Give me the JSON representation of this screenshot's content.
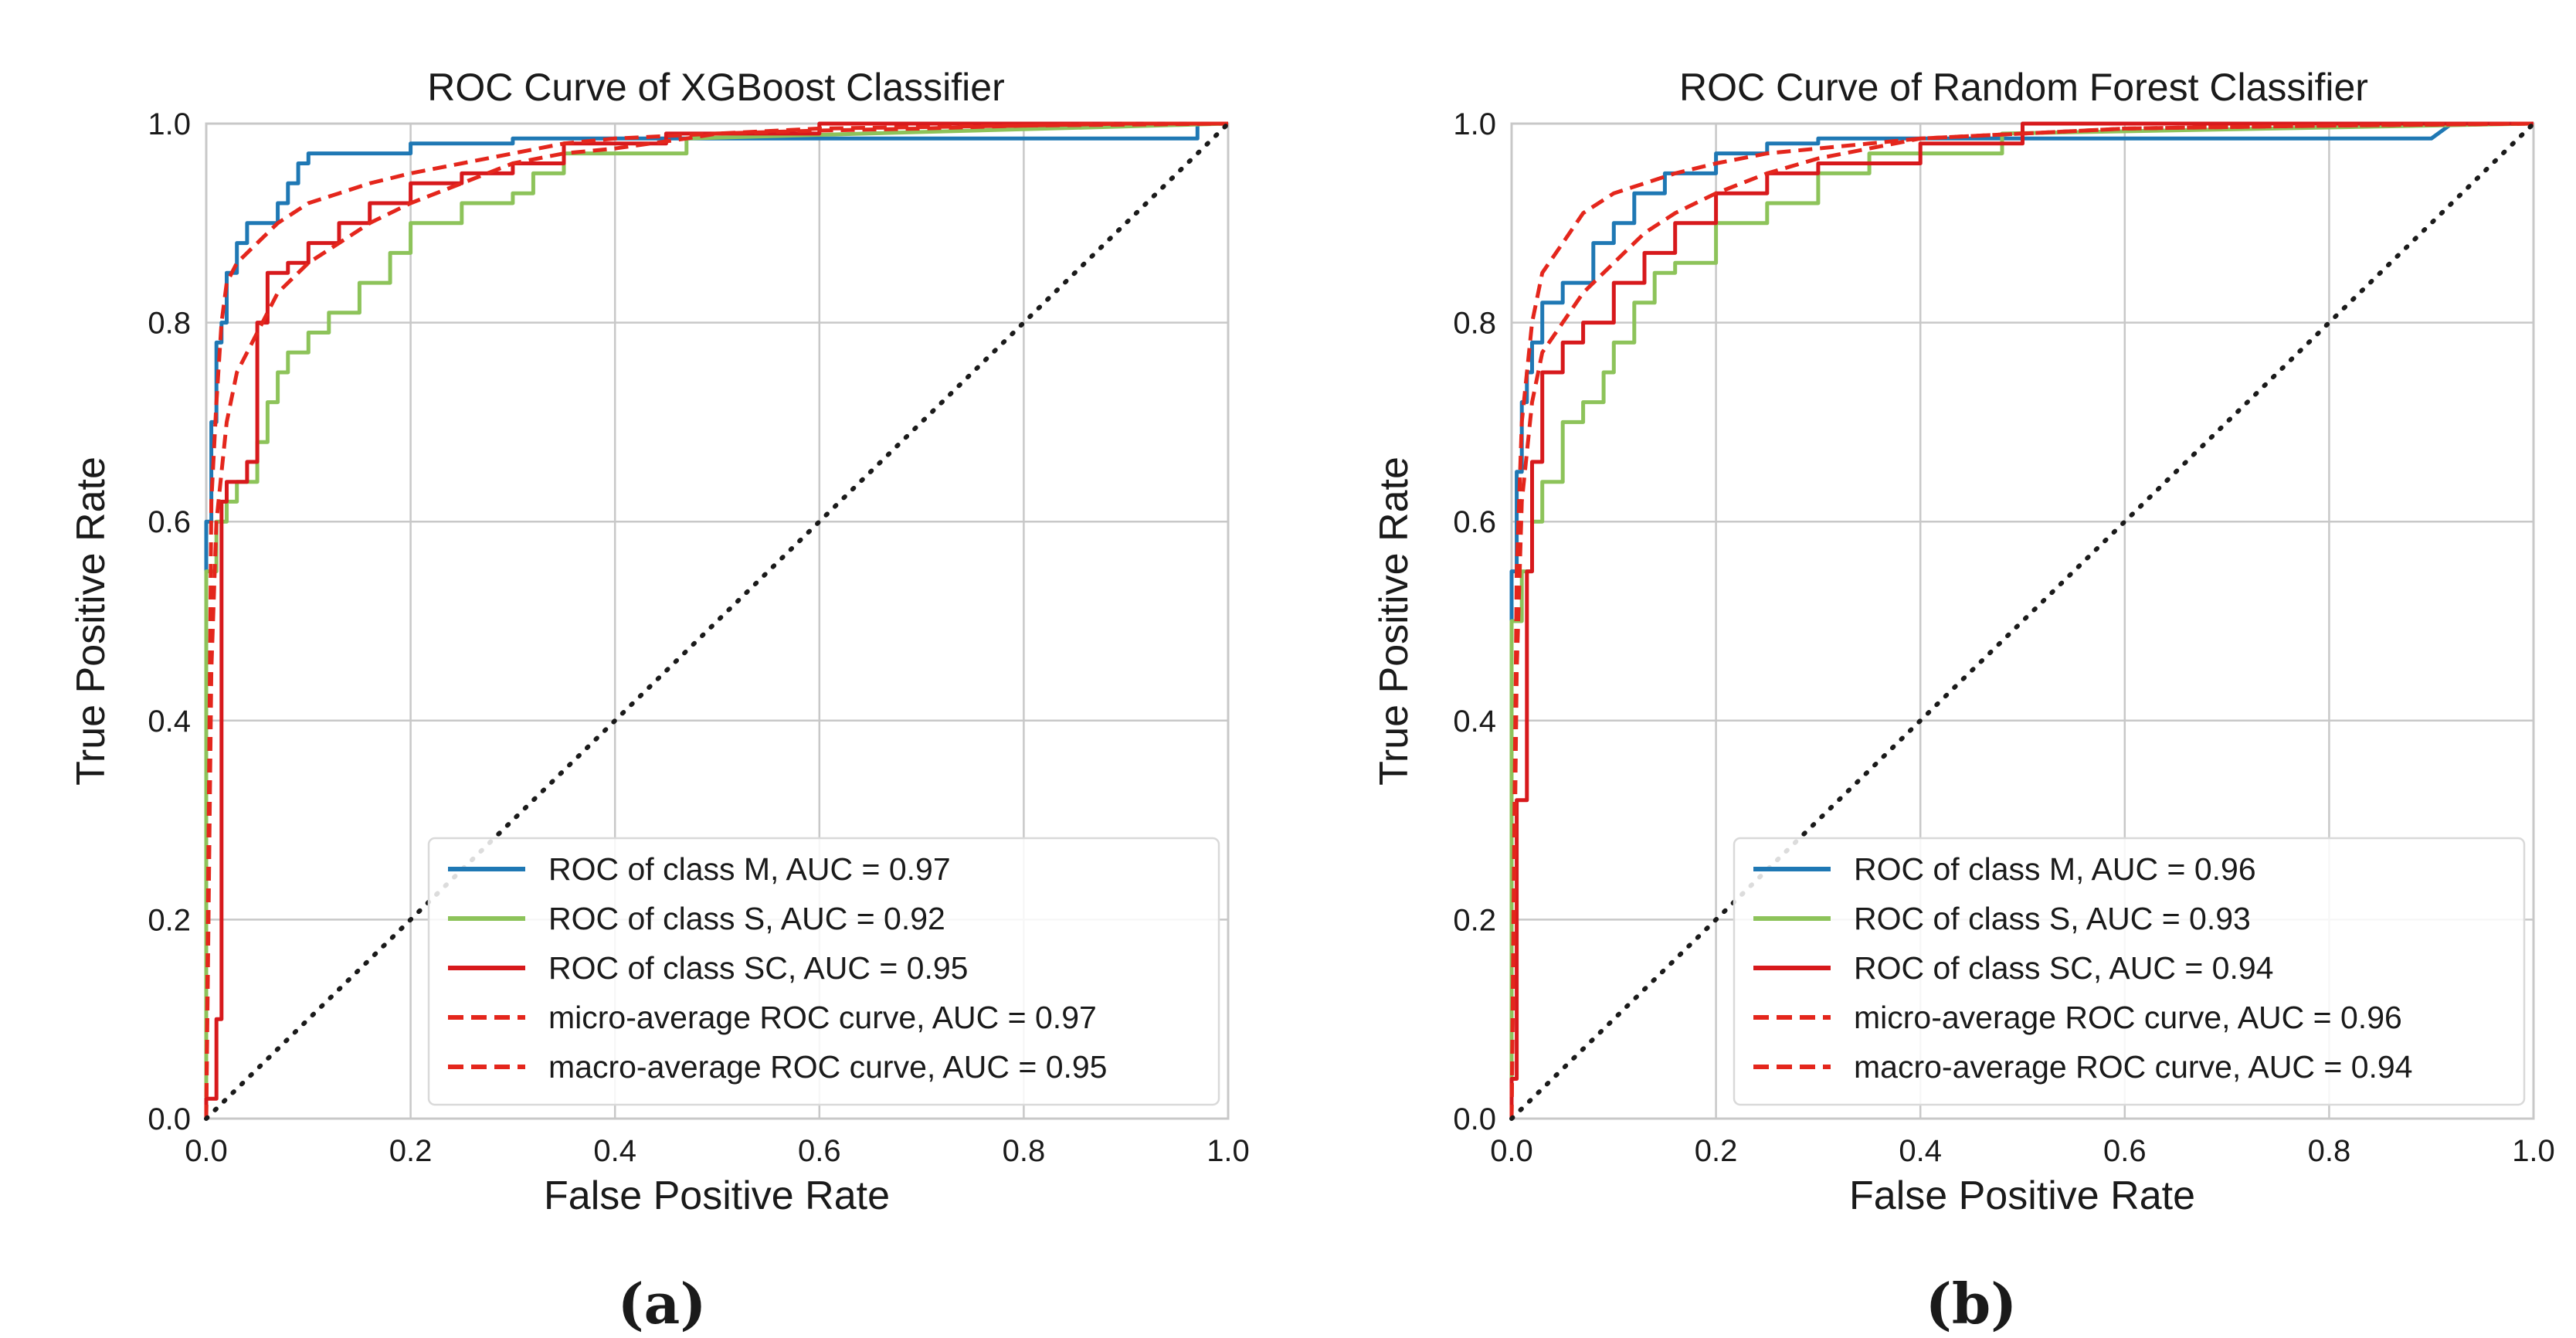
{
  "colors": {
    "class_m": "#1f78b4",
    "class_s": "#8dc35a",
    "class_sc": "#d7191c",
    "average": "#e4261c",
    "diagonal": "#1a1a1a",
    "grid": "#c8c8c8",
    "frame": "#c8c8c8"
  },
  "chart_data": [
    {
      "type": "line",
      "caption": "(a)",
      "title": "ROC Curve of XGBoost Classifier",
      "xlabel": "False Positive Rate",
      "ylabel": "True Positive Rate",
      "xlim": [
        0,
        1
      ],
      "ylim": [
        0,
        1
      ],
      "xticks": [
        "0.0",
        "0.2",
        "0.4",
        "0.6",
        "0.8",
        "1.0"
      ],
      "yticks": [
        "0.0",
        "0.2",
        "0.4",
        "0.6",
        "0.8",
        "1.0"
      ],
      "grid": true,
      "legend_position": "lower-right",
      "series": [
        {
          "name": "ROC of class M, AUC = 0.97",
          "color": "#1f78b4",
          "dash": "solid",
          "x": [
            0,
            0,
            0.005,
            0.005,
            0.01,
            0.01,
            0.015,
            0.015,
            0.02,
            0.02,
            0.03,
            0.03,
            0.04,
            0.04,
            0.07,
            0.07,
            0.08,
            0.08,
            0.09,
            0.09,
            0.1,
            0.1,
            0.2,
            0.2,
            0.3,
            0.3,
            0.97,
            0.97,
            0.98,
            1.0
          ],
          "y": [
            0,
            0.6,
            0.6,
            0.7,
            0.7,
            0.78,
            0.78,
            0.8,
            0.8,
            0.85,
            0.85,
            0.88,
            0.88,
            0.9,
            0.9,
            0.92,
            0.92,
            0.94,
            0.94,
            0.96,
            0.96,
            0.97,
            0.97,
            0.98,
            0.98,
            0.985,
            0.985,
            1.0,
            1.0,
            1.0
          ]
        },
        {
          "name": "ROC of class S, AUC = 0.92",
          "color": "#8dc35a",
          "dash": "solid",
          "x": [
            0,
            0,
            0.01,
            0.01,
            0.02,
            0.02,
            0.03,
            0.03,
            0.05,
            0.05,
            0.06,
            0.06,
            0.07,
            0.07,
            0.08,
            0.08,
            0.1,
            0.1,
            0.12,
            0.12,
            0.15,
            0.15,
            0.18,
            0.18,
            0.2,
            0.2,
            0.25,
            0.25,
            0.3,
            0.3,
            0.32,
            0.32,
            0.35,
            0.35,
            0.47,
            0.47,
            1.0
          ],
          "y": [
            0,
            0.55,
            0.55,
            0.6,
            0.6,
            0.62,
            0.62,
            0.64,
            0.64,
            0.68,
            0.68,
            0.72,
            0.72,
            0.75,
            0.75,
            0.77,
            0.77,
            0.79,
            0.79,
            0.81,
            0.81,
            0.84,
            0.84,
            0.87,
            0.87,
            0.9,
            0.9,
            0.92,
            0.92,
            0.93,
            0.93,
            0.95,
            0.95,
            0.97,
            0.97,
            0.985,
            1.0
          ]
        },
        {
          "name": "ROC of class SC, AUC = 0.95",
          "color": "#d7191c",
          "dash": "solid",
          "x": [
            0,
            0,
            0.01,
            0.01,
            0.015,
            0.015,
            0.02,
            0.02,
            0.04,
            0.04,
            0.05,
            0.05,
            0.06,
            0.06,
            0.08,
            0.08,
            0.1,
            0.1,
            0.13,
            0.13,
            0.16,
            0.16,
            0.2,
            0.2,
            0.25,
            0.25,
            0.3,
            0.3,
            0.35,
            0.35,
            0.45,
            0.45,
            0.6,
            0.6,
            1.0
          ],
          "y": [
            0,
            0.02,
            0.02,
            0.1,
            0.1,
            0.62,
            0.62,
            0.64,
            0.64,
            0.66,
            0.66,
            0.8,
            0.8,
            0.85,
            0.85,
            0.86,
            0.86,
            0.88,
            0.88,
            0.9,
            0.9,
            0.92,
            0.92,
            0.94,
            0.94,
            0.95,
            0.95,
            0.96,
            0.96,
            0.98,
            0.98,
            0.99,
            0.99,
            1.0,
            1.0
          ]
        },
        {
          "name": "micro-average ROC curve, AUC = 0.97",
          "color": "#e4261c",
          "dash": "dashed",
          "x": [
            0,
            0.005,
            0.01,
            0.015,
            0.02,
            0.03,
            0.05,
            0.07,
            0.1,
            0.13,
            0.16,
            0.2,
            0.25,
            0.3,
            0.35,
            0.4,
            0.5,
            0.6,
            0.7,
            0.8,
            0.9,
            1.0
          ],
          "y": [
            0,
            0.62,
            0.72,
            0.8,
            0.84,
            0.86,
            0.88,
            0.9,
            0.92,
            0.93,
            0.94,
            0.95,
            0.96,
            0.97,
            0.98,
            0.985,
            0.99,
            0.993,
            0.995,
            0.998,
            1.0,
            1.0
          ]
        },
        {
          "name": "macro-average ROC curve, AUC = 0.95",
          "color": "#e4261c",
          "dash": "dashed",
          "x": [
            0,
            0.005,
            0.01,
            0.02,
            0.03,
            0.05,
            0.07,
            0.1,
            0.13,
            0.16,
            0.2,
            0.25,
            0.3,
            0.35,
            0.4,
            0.47,
            0.5,
            0.6,
            0.8,
            1.0
          ],
          "y": [
            0,
            0.45,
            0.6,
            0.7,
            0.75,
            0.79,
            0.83,
            0.86,
            0.88,
            0.9,
            0.92,
            0.94,
            0.96,
            0.97,
            0.975,
            0.985,
            0.99,
            0.995,
            0.998,
            1.0
          ]
        }
      ],
      "diagonal": {
        "x": [
          0,
          1
        ],
        "y": [
          0,
          1
        ]
      }
    },
    {
      "type": "line",
      "caption": "(b)",
      "title": "ROC Curve of Random Forest Classifier",
      "xlabel": "False Positive Rate",
      "ylabel": "True Positive Rate",
      "xlim": [
        0,
        1
      ],
      "ylim": [
        0,
        1
      ],
      "xticks": [
        "0.0",
        "0.2",
        "0.4",
        "0.6",
        "0.8",
        "1.0"
      ],
      "yticks": [
        "0.0",
        "0.2",
        "0.4",
        "0.6",
        "0.8",
        "1.0"
      ],
      "grid": true,
      "legend_position": "lower-right",
      "series": [
        {
          "name": "ROC of class M, AUC = 0.96",
          "color": "#1f78b4",
          "dash": "solid",
          "x": [
            0,
            0,
            0.005,
            0.005,
            0.01,
            0.01,
            0.015,
            0.015,
            0.02,
            0.02,
            0.03,
            0.03,
            0.05,
            0.05,
            0.08,
            0.08,
            0.1,
            0.1,
            0.12,
            0.12,
            0.15,
            0.15,
            0.2,
            0.2,
            0.25,
            0.25,
            0.3,
            0.3,
            0.4,
            0.4,
            0.9,
            0.92,
            1.0
          ],
          "y": [
            0,
            0.55,
            0.55,
            0.65,
            0.65,
            0.72,
            0.72,
            0.75,
            0.75,
            0.78,
            0.78,
            0.82,
            0.82,
            0.84,
            0.84,
            0.88,
            0.88,
            0.9,
            0.9,
            0.93,
            0.93,
            0.95,
            0.95,
            0.97,
            0.97,
            0.98,
            0.98,
            0.985,
            0.985,
            0.985,
            0.985,
            1.0,
            1.0
          ]
        },
        {
          "name": "ROC of class S, AUC = 0.93",
          "color": "#8dc35a",
          "dash": "solid",
          "x": [
            0,
            0,
            0.01,
            0.01,
            0.02,
            0.02,
            0.03,
            0.03,
            0.05,
            0.05,
            0.07,
            0.07,
            0.09,
            0.09,
            0.1,
            0.1,
            0.12,
            0.12,
            0.14,
            0.14,
            0.16,
            0.16,
            0.2,
            0.2,
            0.25,
            0.25,
            0.3,
            0.3,
            0.35,
            0.35,
            0.48,
            0.48,
            1.0
          ],
          "y": [
            0,
            0.5,
            0.5,
            0.55,
            0.55,
            0.6,
            0.6,
            0.64,
            0.64,
            0.7,
            0.7,
            0.72,
            0.72,
            0.75,
            0.75,
            0.78,
            0.78,
            0.82,
            0.82,
            0.85,
            0.85,
            0.86,
            0.86,
            0.9,
            0.9,
            0.92,
            0.92,
            0.95,
            0.95,
            0.97,
            0.97,
            0.99,
            1.0
          ]
        },
        {
          "name": "ROC of class SC, AUC = 0.94",
          "color": "#d7191c",
          "dash": "solid",
          "x": [
            0,
            0,
            0.005,
            0.005,
            0.015,
            0.015,
            0.02,
            0.02,
            0.03,
            0.03,
            0.05,
            0.05,
            0.07,
            0.07,
            0.1,
            0.1,
            0.13,
            0.13,
            0.16,
            0.16,
            0.2,
            0.2,
            0.25,
            0.25,
            0.3,
            0.3,
            0.4,
            0.4,
            0.5,
            0.5,
            0.95,
            1.0
          ],
          "y": [
            0,
            0.04,
            0.04,
            0.32,
            0.32,
            0.55,
            0.55,
            0.66,
            0.66,
            0.75,
            0.75,
            0.78,
            0.78,
            0.8,
            0.8,
            0.84,
            0.84,
            0.87,
            0.87,
            0.9,
            0.9,
            0.93,
            0.93,
            0.95,
            0.95,
            0.96,
            0.96,
            0.98,
            0.98,
            1.0,
            1.0,
            1.0
          ]
        },
        {
          "name": "micro-average ROC curve, AUC = 0.96",
          "color": "#e4261c",
          "dash": "dashed",
          "x": [
            0,
            0.005,
            0.01,
            0.02,
            0.03,
            0.05,
            0.07,
            0.1,
            0.13,
            0.16,
            0.2,
            0.25,
            0.3,
            0.35,
            0.4,
            0.5,
            0.6,
            0.8,
            1.0
          ],
          "y": [
            0,
            0.55,
            0.7,
            0.8,
            0.85,
            0.88,
            0.91,
            0.93,
            0.94,
            0.95,
            0.96,
            0.97,
            0.975,
            0.98,
            0.985,
            0.99,
            0.995,
            0.998,
            1.0
          ]
        },
        {
          "name": "macro-average ROC curve, AUC = 0.94",
          "color": "#e4261c",
          "dash": "dashed",
          "x": [
            0,
            0.005,
            0.01,
            0.02,
            0.03,
            0.05,
            0.07,
            0.1,
            0.13,
            0.16,
            0.2,
            0.25,
            0.3,
            0.35,
            0.4,
            0.5,
            0.6,
            0.8,
            1.0
          ],
          "y": [
            0,
            0.45,
            0.62,
            0.72,
            0.77,
            0.8,
            0.83,
            0.86,
            0.89,
            0.91,
            0.93,
            0.95,
            0.965,
            0.975,
            0.985,
            0.99,
            0.995,
            0.998,
            1.0
          ]
        }
      ],
      "diagonal": {
        "x": [
          0,
          1
        ],
        "y": [
          0,
          1
        ]
      }
    }
  ]
}
